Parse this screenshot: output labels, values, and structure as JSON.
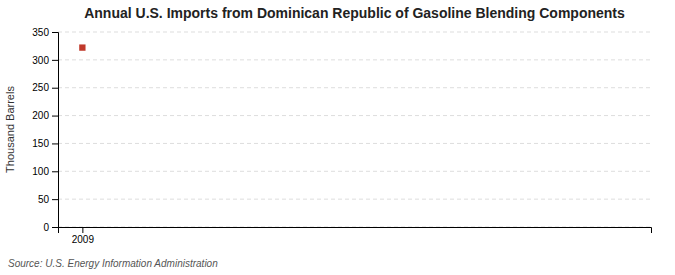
{
  "chart_data": {
    "type": "scatter",
    "title": "Annual U.S. Imports from Dominican Republic of Gasoline Blending Components",
    "ylabel": "Thousand Barrels",
    "source": "Source: U.S. Energy Information Administration",
    "x": [
      2009
    ],
    "values": [
      322
    ],
    "color": "#c0392b",
    "marker": "square",
    "xlim": [
      2008.4,
      2023
    ],
    "xticks": [
      2009
    ],
    "ylim": [
      0,
      350
    ],
    "yticks": [
      0,
      50,
      100,
      150,
      200,
      250,
      300,
      350
    ],
    "grid": true
  }
}
